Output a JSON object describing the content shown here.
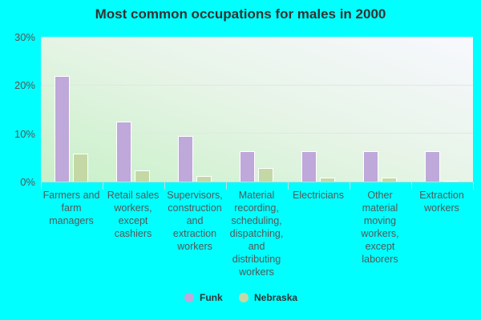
{
  "title": "Most common occupations for males in 2000",
  "legend": [
    {
      "label": "Funk",
      "color": "#bfa8da"
    },
    {
      "label": "Nebraska",
      "color": "#c4d8a6"
    }
  ],
  "y_ticks": [
    "30%",
    "20%",
    "10%",
    "0%"
  ],
  "x_labels": [
    "Farmers and farm managers",
    "Retail sales workers, except cashiers",
    "Supervisors, construction and extraction workers",
    "Material recording, scheduling, dispatching, and distributing workers",
    "Electricians",
    "Other material moving workers, except laborers",
    "Extraction workers"
  ],
  "chart_data": {
    "type": "bar",
    "title": "Most common occupations for males in 2000",
    "xlabel": "",
    "ylabel": "",
    "ylim": [
      0,
      30
    ],
    "y_ticks": [
      0,
      10,
      20,
      30
    ],
    "grid": true,
    "legend_position": "bottom",
    "categories": [
      "Farmers and farm managers",
      "Retail sales workers, except cashiers",
      "Supervisors, construction and extraction workers",
      "Material recording, scheduling, dispatching, and distributing workers",
      "Electricians",
      "Other material moving workers, except laborers",
      "Extraction workers"
    ],
    "series": [
      {
        "name": "Funk",
        "color": "#bfa8da",
        "values": [
          21.9,
          12.4,
          9.4,
          6.3,
          6.3,
          6.3,
          6.3
        ]
      },
      {
        "name": "Nebraska",
        "color": "#c4d8a6",
        "values": [
          5.8,
          2.4,
          1.1,
          2.8,
          0.9,
          0.9,
          0.1
        ]
      }
    ]
  }
}
